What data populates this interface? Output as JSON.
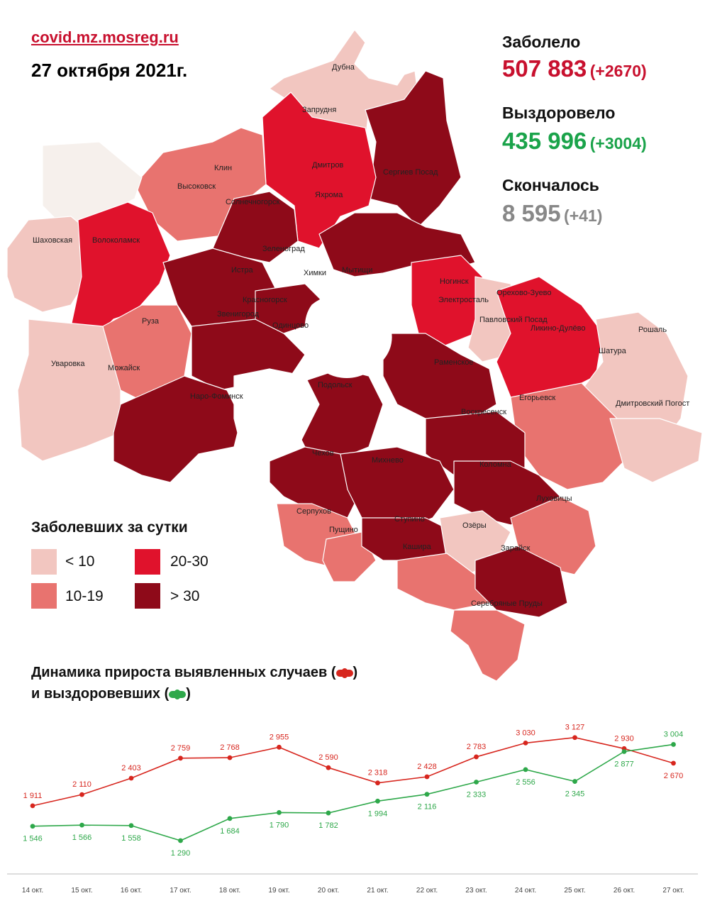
{
  "header": {
    "site": "covid.mz.mosreg.ru",
    "date": "27 октября 2021г."
  },
  "stats": {
    "infected": {
      "label": "Заболело",
      "value": "507 883",
      "delta": "(+2670)",
      "color": "#c8102e"
    },
    "recovered": {
      "label": "Выздоровело",
      "value": "435 996",
      "delta": "(+3004)",
      "color": "#1aa34a"
    },
    "deaths": {
      "label": "Скончалось",
      "value": "8 595",
      "delta": "(+41)",
      "color": "#888888"
    }
  },
  "map": {
    "places": [
      "Дмитров",
      "Яхрома",
      "Клин",
      "Высоковск",
      "Солнечногорск",
      "Сергиев Посад",
      "Запрудня",
      "Дубна",
      "Шаховская",
      "Волоколамск",
      "Зеленоград",
      "Истра",
      "Химки",
      "Мытищи",
      "Красногорск",
      "Звенигород",
      "Одинцово",
      "Руза",
      "Можайск",
      "Уваровка",
      "Наро-Фоминск",
      "Подольск",
      "Ногинск",
      "Электросталь",
      "Павловский Посад",
      "Орехово-Зуево",
      "Ликино-Дулёво",
      "Рошаль",
      "Шатура",
      "Раменское",
      "Егорьевск",
      "Дмитровский Погост",
      "Воскресенск",
      "Чехов",
      "Михнево",
      "Коломна",
      "Серпухов",
      "Пущино",
      "Ступино",
      "Озёры",
      "Кашира",
      "Луховицы",
      "Зарайск",
      "Серебряные Пруды"
    ],
    "colors": {
      "lt10": "#f2c6c0",
      "10to19": "#e8736f",
      "20to30": "#e0122c",
      "gt30": "#8e0a19"
    }
  },
  "legend": {
    "title": "Заболевших за сутки",
    "items": [
      {
        "label": "< 10",
        "color": "#f2c6c0"
      },
      {
        "label": "20-30",
        "color": "#e0122c"
      },
      {
        "label": "10-19",
        "color": "#e8736f"
      },
      {
        "label": "> 30",
        "color": "#8e0a19"
      }
    ]
  },
  "dynamics": {
    "title_line1": "Динамика прироста выявленных случаев (",
    "title_line1_end": ")",
    "title_line2": "и выздоровевших (",
    "title_line2_end": ")"
  },
  "chart_data": {
    "type": "line",
    "x": [
      "14 окт.",
      "15 окт.",
      "16 окт.",
      "17 окт.",
      "18 окт.",
      "19 окт.",
      "20 окт.",
      "21 окт.",
      "22 окт.",
      "23 окт.",
      "24 окт.",
      "25 окт.",
      "26 окт.",
      "27 окт."
    ],
    "series": [
      {
        "color": "#d7261e",
        "values": [
          1911,
          2110,
          2403,
          2759,
          2768,
          2955,
          2590,
          2318,
          2428,
          2783,
          3030,
          3127,
          2930,
          2670
        ],
        "labels": [
          "1 911",
          "2 110",
          "2 403",
          "2 759",
          "2 768",
          "2 955",
          "2 590",
          "2 318",
          "2 428",
          "2 783",
          "3 030",
          "3 127",
          "2 930",
          "2 670"
        ]
      },
      {
        "color": "#2ea84a",
        "values": [
          1546,
          1566,
          1558,
          1290,
          1684,
          1790,
          1782,
          1994,
          2116,
          2333,
          2556,
          2345,
          2877,
          3004
        ],
        "labels": [
          "1 546",
          "1 566",
          "1 558",
          "1 290",
          "1 684",
          "1 790",
          "1 782",
          "1 994",
          "2 116",
          "2 333",
          "2 556",
          "2 345",
          "2 877",
          "3 004"
        ]
      }
    ],
    "ylim": [
      1100,
      3250
    ]
  }
}
